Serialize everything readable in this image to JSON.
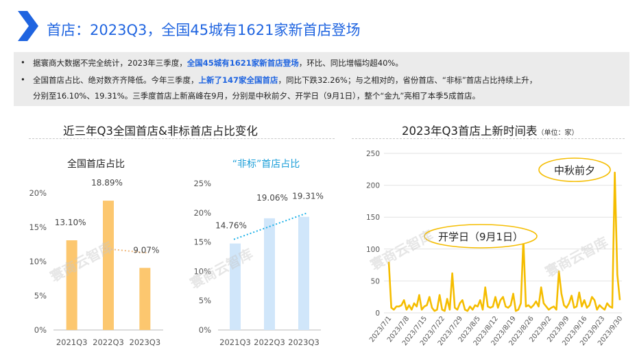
{
  "header": {
    "title": "首店：2023Q3，全国45城有1621家新首店登场"
  },
  "bullets": [
    {
      "a": "据寰商大数据不完全统计，2023年三季度，",
      "b": "全国45城有1621家新首店登场",
      "c": "，环比、同比增幅均超40%。"
    },
    {
      "a": "全国首店占比、绝对数齐齐降低。今年三季度，",
      "b": "上新了147家全国首店",
      "c": "，同比下跌32.26%；与之相对的，省份首店、“非标”首店占比持续上升，",
      "d": "分别至16.10%、19.31%。三季度首店上新高峰在9月，分别是中秋前夕、开学日（9月1日），整个“金九”亮相了本季5成首店。"
    }
  ],
  "left_section": {
    "title": "近三年Q3全国首店&非标首店占比变化"
  },
  "right_section": {
    "title": "2023年Q3首店上新时间表",
    "unit": "（单位：家）"
  },
  "watermark": "寰商云智库",
  "colors": {
    "accent": "#1f64e0",
    "orange_bar": "#fcc76f",
    "blue_bar": "#d0e6fa",
    "orange_trend": "#f0b77a",
    "blue_trend": "#1ab0e8",
    "line": "#f5bd00"
  },
  "chart_data": [
    {
      "type": "bar",
      "title": "全国首店占比",
      "categories": [
        "2021Q3",
        "2022Q3",
        "2023Q3"
      ],
      "values": [
        13.1,
        18.89,
        9.07
      ],
      "data_labels": [
        "13.10%",
        "18.89%",
        "9.07%"
      ],
      "unit": "%",
      "ylim": [
        0,
        20
      ],
      "yticks": [
        "0%",
        "5%",
        "10%",
        "15%",
        "20%"
      ],
      "trendline": "dotted"
    },
    {
      "type": "bar",
      "title": "“非标”首店占比",
      "categories": [
        "2021Q3",
        "2022Q3",
        "2023Q3"
      ],
      "values": [
        14.76,
        19.06,
        19.31
      ],
      "data_labels": [
        "14.76%",
        "19.06%",
        "19.31%"
      ],
      "unit": "%",
      "ylim": [
        0,
        25
      ],
      "yticks": [
        "0%",
        "5%",
        "10%",
        "15%",
        "20%",
        "25%"
      ],
      "trendline": "dotted"
    },
    {
      "type": "line",
      "x_start": "2023/7/1",
      "x_end": "2023/9/30",
      "xticks": [
        "2023/7/1",
        "2023/7/8",
        "2023/7/15",
        "2023/7/22",
        "2023/7/29",
        "2023/8/5",
        "2023/8/12",
        "2023/8/19",
        "2023/8/26",
        "2023/9/2",
        "2023/9/9",
        "2023/9/16",
        "2023/9/23",
        "2023/9/30"
      ],
      "ylim": [
        0,
        250
      ],
      "yticks": [
        "0",
        "50",
        "100",
        "150",
        "200",
        "250"
      ],
      "grid": true,
      "values": [
        80,
        8,
        5,
        10,
        10,
        12,
        20,
        5,
        12,
        5,
        15,
        10,
        28,
        5,
        10,
        12,
        25,
        8,
        3,
        5,
        28,
        5,
        3,
        22,
        5,
        62,
        8,
        5,
        15,
        20,
        5,
        3,
        10,
        5,
        12,
        10,
        20,
        5,
        40,
        10,
        8,
        10,
        25,
        8,
        20,
        25,
        10,
        8,
        12,
        30,
        3,
        5,
        15,
        115,
        10,
        12,
        8,
        12,
        18,
        10,
        40,
        15,
        10,
        5,
        8,
        10,
        5,
        65,
        30,
        12,
        8,
        15,
        27,
        8,
        10,
        32,
        10,
        20,
        8,
        12,
        25,
        20,
        5,
        12,
        8,
        5,
        15,
        10,
        8,
        220,
        60,
        20
      ],
      "annotations": [
        "中秋前夕",
        "开学日（9月1日）"
      ]
    }
  ]
}
